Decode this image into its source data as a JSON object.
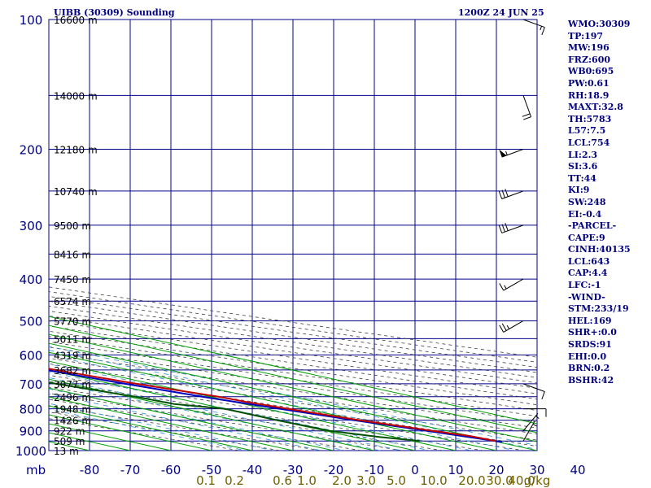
{
  "header": {
    "station": "UIBB (30309) Sounding",
    "time": "1200Z 24 JUN 25"
  },
  "indices": [
    "WMO:30309",
    "TP:197",
    "MW:196",
    "FRZ:600",
    "WB0:695",
    "PW:0.61",
    "RH:18.9",
    "MAXT:32.8",
    "TH:5783",
    "L57:7.5",
    "LCL:754",
    "LI:2.3",
    "SI:3.6",
    "TT:44",
    "KI:9",
    "SW:248",
    "EI:-0.4",
    "-PARCEL-",
    "CAPE:9",
    "CINH:40135",
    "LCL:643",
    "CAP:4.4",
    "LFC:-1",
    "-WIND-",
    "STM:233/19",
    "HEL:169",
    "SHR+:0.0",
    "SRDS:91",
    "EHI:0.0",
    "BRN:0.2",
    "BSHR:42"
  ],
  "colors": {
    "grid": "#00008b",
    "isotherm": "#00a000",
    "temperature": "#c00000",
    "dewpoint": "#005000",
    "parcel": "#0000c0",
    "mixing_ratio": "#3090d0",
    "adiabat": "#404040",
    "label": "#000080",
    "mixing_ratio_label": "#706000"
  },
  "chart_data": {
    "type": "skew-t",
    "x_axis_label": "mb",
    "x_unit_label": "g/kg",
    "pressure_levels": [
      100,
      200,
      300,
      400,
      500,
      600,
      700,
      800,
      900,
      1000
    ],
    "pressure_range": [
      100,
      1000
    ],
    "temperature_ticks": [
      -80,
      -70,
      -60,
      -50,
      -40,
      -30,
      -20,
      -10,
      0,
      10,
      20,
      30,
      40
    ],
    "temperature_tick_labels": [
      "-80",
      "-70",
      "-60",
      "-50",
      "-40",
      "-30",
      "-20",
      "-10",
      "0",
      "10",
      "20",
      "30",
      "40"
    ],
    "mixing_ratio_labels": [
      "0.1",
      "0.2",
      "0.6",
      "1.0",
      "2.0",
      "3.0",
      "5.0",
      "10.0",
      "20.0",
      "30.0",
      "40.0"
    ],
    "height_labels": [
      {
        "p": 100,
        "text": "16600 m"
      },
      {
        "p": 150,
        "text": "14000 m"
      },
      {
        "p": 200,
        "text": "12180 m"
      },
      {
        "p": 250,
        "text": "10740 m"
      },
      {
        "p": 300,
        "text": "9500 m"
      },
      {
        "p": 350,
        "text": "8416 m"
      },
      {
        "p": 400,
        "text": "7450 m"
      },
      {
        "p": 450,
        "text": "6574 m"
      },
      {
        "p": 500,
        "text": "5770 m"
      },
      {
        "p": 550,
        "text": "5011 m"
      },
      {
        "p": 600,
        "text": "4319 m"
      },
      {
        "p": 650,
        "text": "3682 m"
      },
      {
        "p": 700,
        "text": "3077 m"
      },
      {
        "p": 750,
        "text": "2496 m"
      },
      {
        "p": 800,
        "text": "1948 m"
      },
      {
        "p": 850,
        "text": "1426 m"
      },
      {
        "p": 900,
        "text": "922 m"
      },
      {
        "p": 950,
        "text": "509 m"
      },
      {
        "p": 1000,
        "text": "13 m"
      }
    ],
    "temperature_profile": [
      {
        "p": 950,
        "t": 30.5
      },
      {
        "p": 925,
        "t": 29.9
      },
      {
        "p": 900,
        "t": 26.4
      },
      {
        "p": 850,
        "t": 20.4
      },
      {
        "p": 800,
        "t": 15.5
      },
      {
        "p": 770,
        "t": 12.9
      },
      {
        "p": 750,
        "t": 12.0
      },
      {
        "p": 700,
        "t": 6.2
      },
      {
        "p": 650,
        "t": 1.9
      },
      {
        "p": 600,
        "t": -2.5
      },
      {
        "p": 550,
        "t": -7.9
      },
      {
        "p": 500,
        "t": -13.6
      },
      {
        "p": 470,
        "t": -17.3
      },
      {
        "p": 440,
        "t": -19.4
      },
      {
        "p": 400,
        "t": -23.3
      },
      {
        "p": 360,
        "t": -28.1
      },
      {
        "p": 330,
        "t": -33.3
      },
      {
        "p": 300,
        "t": -37.9
      },
      {
        "p": 250,
        "t": -46.7
      },
      {
        "p": 220,
        "t": -52.4
      },
      {
        "p": 200,
        "t": -56.3
      },
      {
        "p": 150,
        "t": -55.5
      },
      {
        "p": 125,
        "t": -54.2
      },
      {
        "p": 100,
        "t": -57.4
      }
    ],
    "dewpoint_profile": [
      {
        "p": 950,
        "t": 11.9
      },
      {
        "p": 930,
        "t": 6.4
      },
      {
        "p": 900,
        "t": 1.1
      },
      {
        "p": 850,
        "t": 0.1
      },
      {
        "p": 800,
        "t": 0.0
      },
      {
        "p": 780,
        "t": -7.1
      },
      {
        "p": 750,
        "t": -8.4
      },
      {
        "p": 700,
        "t": -13.5
      },
      {
        "p": 650,
        "t": -18.0
      },
      {
        "p": 600,
        "t": -21.8
      },
      {
        "p": 550,
        "t": -25.1
      },
      {
        "p": 500,
        "t": -29.4
      },
      {
        "p": 450,
        "t": -35.2
      },
      {
        "p": 430,
        "t": -38.0
      },
      {
        "p": 400,
        "t": -30.0
      },
      {
        "p": 350,
        "t": -36.0
      },
      {
        "p": 300,
        "t": -45.8
      },
      {
        "p": 250,
        "t": -53.9
      },
      {
        "p": 220,
        "t": -58.8
      },
      {
        "p": 200,
        "t": -63.4
      },
      {
        "p": 180,
        "t": -67.4
      },
      {
        "p": 150,
        "t": -68.3
      },
      {
        "p": 125,
        "t": -67.0
      },
      {
        "p": 100,
        "t": -73.0
      }
    ],
    "parcel_profile": [
      {
        "p": 955,
        "t": 31.0
      },
      {
        "p": 900,
        "t": 25.0
      },
      {
        "p": 850,
        "t": 19.0
      },
      {
        "p": 800,
        "t": 13.5
      },
      {
        "p": 750,
        "t": 8.0
      },
      {
        "p": 700,
        "t": 3.5
      },
      {
        "p": 650,
        "t": -0.6
      },
      {
        "p": 600,
        "t": -4.5
      },
      {
        "p": 550,
        "t": -9.1
      },
      {
        "p": 500,
        "t": -14.5
      },
      {
        "p": 450,
        "t": -20.3
      },
      {
        "p": 400,
        "t": -26.7
      },
      {
        "p": 350,
        "t": -34.0
      },
      {
        "p": 300,
        "t": -42.5
      },
      {
        "p": 250,
        "t": -52.8
      },
      {
        "p": 200,
        "t": -65.0
      },
      {
        "p": 170,
        "t": -72.4
      }
    ],
    "winds": [
      {
        "p": 100,
        "dir": 110,
        "speed": 15
      },
      {
        "p": 150,
        "dir": 160,
        "speed": 20
      },
      {
        "p": 200,
        "dir": 250,
        "speed": 55
      },
      {
        "p": 250,
        "dir": 250,
        "speed": 30
      },
      {
        "p": 300,
        "dir": 250,
        "speed": 30
      },
      {
        "p": 400,
        "dir": 240,
        "speed": 15
      },
      {
        "p": 500,
        "dir": 240,
        "speed": 25
      },
      {
        "p": 700,
        "dir": 110,
        "speed": 10
      },
      {
        "p": 800,
        "dir": 90,
        "speed": 10
      },
      {
        "p": 900,
        "dir": 40,
        "speed": 5
      },
      {
        "p": 950,
        "dir": 30,
        "speed": 5
      }
    ]
  }
}
